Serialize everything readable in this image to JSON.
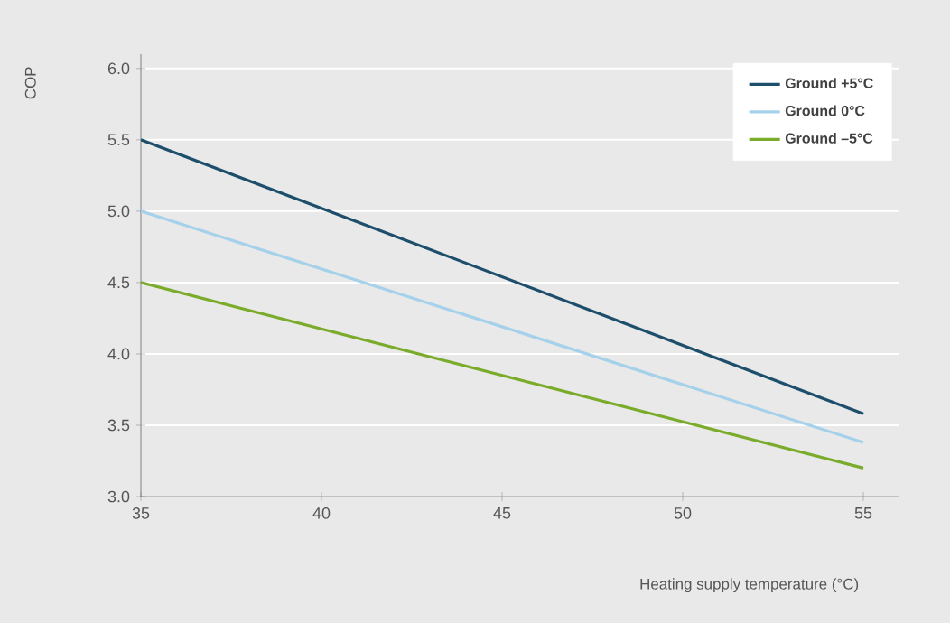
{
  "chart_data": {
    "type": "line",
    "xlabel": "Heating supply temperature (°C)",
    "ylabel": "COP",
    "x": [
      35,
      55
    ],
    "series": [
      {
        "name": "Ground +5°C",
        "color": "#1d4e6b",
        "values": [
          5.5,
          3.58
        ]
      },
      {
        "name": "Ground 0°C",
        "color": "#a6d1ea",
        "values": [
          5.0,
          3.38
        ]
      },
      {
        "name": "Ground –5°C",
        "color": "#7aab2a",
        "values": [
          4.5,
          3.2
        ]
      }
    ],
    "xlim": [
      35,
      56
    ],
    "ylim": [
      3.0,
      6.1
    ],
    "xticks": [
      35,
      40,
      45,
      50,
      55
    ],
    "yticks": [
      {
        "value": 3.0,
        "label": "3.0"
      },
      {
        "value": 3.5,
        "label": "3.5"
      },
      {
        "value": 4.0,
        "label": "4.0"
      },
      {
        "value": 4.5,
        "label": "4.5"
      },
      {
        "value": 5.0,
        "label": "5.0"
      },
      {
        "value": 5.5,
        "label": "5.5"
      },
      {
        "value": 6.0,
        "label": "6.0"
      }
    ],
    "grid": "y",
    "legend": "top right",
    "marker": "none",
    "line_style": "solid"
  }
}
